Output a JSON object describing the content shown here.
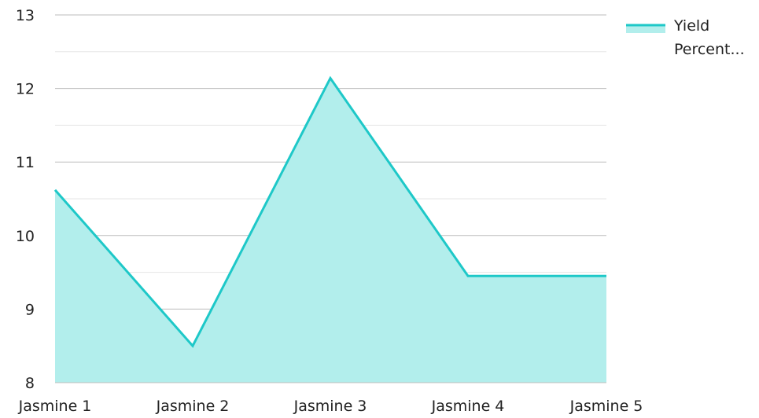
{
  "chart_data": {
    "type": "area",
    "categories": [
      "Jasmine 1",
      "Jasmine 2",
      "Jasmine 3",
      "Jasmine 4",
      "Jasmine 5"
    ],
    "series": [
      {
        "name": "Yield Percent...",
        "values": [
          10.62,
          8.5,
          12.14,
          9.45,
          9.45
        ]
      }
    ],
    "ylim": [
      8,
      13
    ],
    "yticks": [
      "8",
      "9",
      "10",
      "11",
      "12",
      "13"
    ],
    "grid": true,
    "legend_position": "top-right",
    "colors": {
      "line": "#1ec8c8",
      "fill": "#b2eeec",
      "major_grid": "#bdbdbd",
      "minor_grid": "#e6e6e6",
      "axis": "#333333"
    }
  }
}
